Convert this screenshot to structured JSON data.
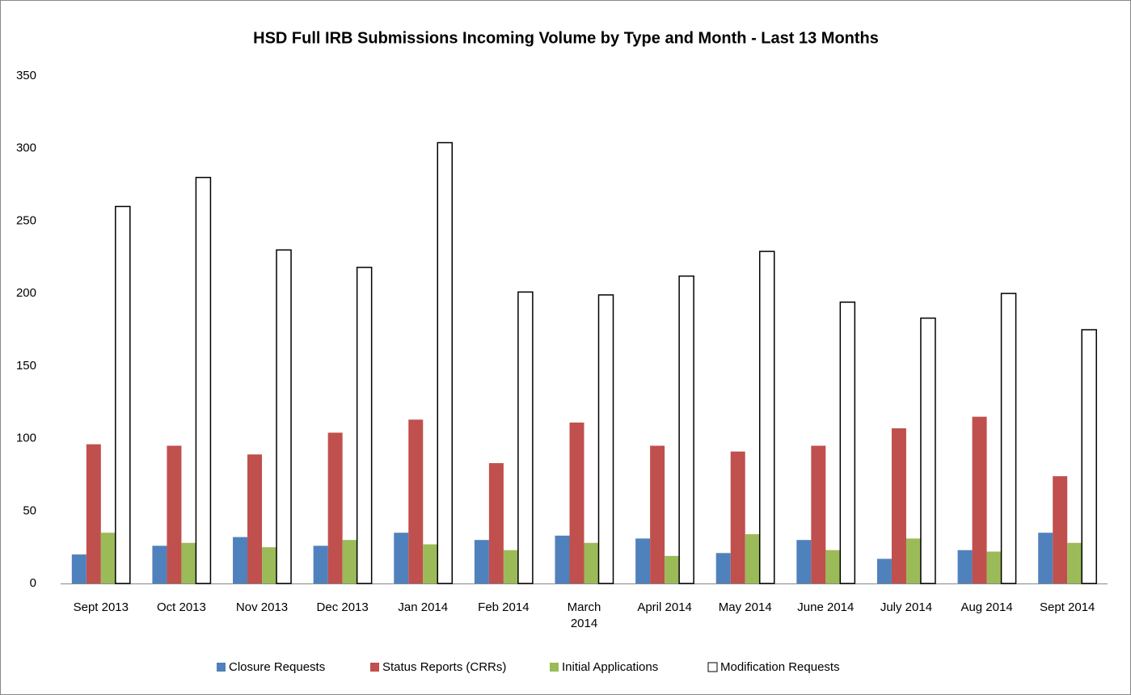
{
  "chart_data": {
    "type": "bar",
    "title": "HSD Full IRB Submissions Incoming Volume by Type and Month - Last 13 Months",
    "categories": [
      "Sept 2013",
      "Oct 2013",
      "Nov 2013",
      "Dec 2013",
      "Jan 2014",
      "Feb 2014",
      "March 2014",
      "April 2014",
      "May 2014",
      "June 2014",
      "July 2014",
      "Aug 2014",
      "Sept 2014"
    ],
    "series": [
      {
        "name": "Closure Requests",
        "color": "#4f81bd",
        "values": [
          20,
          26,
          32,
          26,
          35,
          30,
          33,
          31,
          21,
          30,
          17,
          23,
          35
        ]
      },
      {
        "name": "Status Reports (CRRs)",
        "color": "#c0504d",
        "values": [
          96,
          95,
          89,
          104,
          113,
          83,
          111,
          95,
          91,
          95,
          107,
          115,
          74
        ]
      },
      {
        "name": "Initial Applications",
        "color": "#9bbb59",
        "values": [
          35,
          28,
          25,
          30,
          27,
          23,
          28,
          19,
          34,
          23,
          31,
          22,
          28
        ]
      },
      {
        "name": "Modification Requests",
        "color": "#ffffff",
        "values": [
          260,
          280,
          230,
          218,
          304,
          201,
          199,
          212,
          229,
          194,
          183,
          200,
          175
        ]
      }
    ],
    "ylim": [
      0,
      350
    ],
    "yticks": [
      0,
      50,
      100,
      150,
      200,
      250,
      300,
      350
    ],
    "grid": false,
    "legend": "bottom"
  }
}
